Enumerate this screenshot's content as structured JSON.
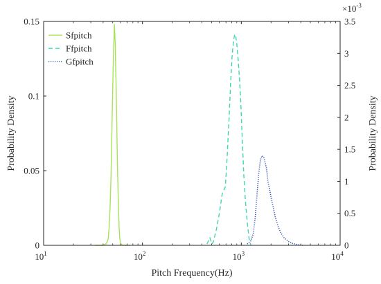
{
  "chart_data": {
    "type": "line",
    "xlabel": "Pitch Frequency(Hz)",
    "ylabel_left": "Probability Density",
    "ylabel_right": "Probability Density",
    "x_scale": "log",
    "xlim": [
      10,
      10000
    ],
    "x_ticks": [
      {
        "value": 10,
        "base": "10",
        "exp": "1"
      },
      {
        "value": 100,
        "base": "10",
        "exp": "2"
      },
      {
        "value": 1000,
        "base": "10",
        "exp": "3"
      },
      {
        "value": 10000,
        "base": "10",
        "exp": "4"
      }
    ],
    "ylim_left": [
      0,
      0.15
    ],
    "y_ticks_left": [
      {
        "value": 0,
        "label": "0"
      },
      {
        "value": 0.05,
        "label": "0.05"
      },
      {
        "value": 0.1,
        "label": "0.1"
      },
      {
        "value": 0.15,
        "label": "0.15"
      }
    ],
    "ylim_right": [
      0,
      3.5
    ],
    "y_ticks_right": [
      {
        "value": 0,
        "label": "0"
      },
      {
        "value": 0.5,
        "label": "0.5"
      },
      {
        "value": 1,
        "label": "1"
      },
      {
        "value": 1.5,
        "label": "1.5"
      },
      {
        "value": 2,
        "label": "2"
      },
      {
        "value": 2.5,
        "label": "2.5"
      },
      {
        "value": 3,
        "label": "3"
      },
      {
        "value": 3.5,
        "label": "3.5"
      }
    ],
    "right_multiplier": {
      "base": "×10",
      "exp": "-3"
    },
    "grid": false,
    "legend_position": "top-left",
    "series": [
      {
        "name": "Sfpitch",
        "axis": "left",
        "color": "#a6e35a",
        "style": "solid",
        "points": [
          [
            33,
            0
          ],
          [
            40,
            0
          ],
          [
            43,
            0.001
          ],
          [
            45,
            0.004
          ],
          [
            46,
            0.012
          ],
          [
            47,
            0.025
          ],
          [
            48,
            0.045
          ],
          [
            49,
            0.075
          ],
          [
            50,
            0.105
          ],
          [
            51,
            0.13
          ],
          [
            52,
            0.148
          ],
          [
            53,
            0.135
          ],
          [
            54,
            0.11
          ],
          [
            55,
            0.08
          ],
          [
            56,
            0.05
          ],
          [
            57,
            0.028
          ],
          [
            58,
            0.012
          ],
          [
            59,
            0.004
          ],
          [
            61,
            0.0005
          ],
          [
            65,
            0
          ],
          [
            75,
            0
          ]
        ]
      },
      {
        "name": "Ffpitch",
        "axis": "right",
        "color": "#3fd6b0",
        "style": "dashed",
        "points": [
          [
            450,
            0.02
          ],
          [
            480,
            0.12
          ],
          [
            505,
            0.02
          ],
          [
            520,
            0.05
          ],
          [
            560,
            0.25
          ],
          [
            600,
            0.5
          ],
          [
            640,
            0.8
          ],
          [
            670,
            0.87
          ],
          [
            690,
            0.92
          ],
          [
            720,
            1.4
          ],
          [
            750,
            1.95
          ],
          [
            780,
            2.55
          ],
          [
            810,
            3.0
          ],
          [
            840,
            3.23
          ],
          [
            860,
            3.3
          ],
          [
            880,
            3.26
          ],
          [
            900,
            3.15
          ],
          [
            930,
            2.9
          ],
          [
            960,
            2.6
          ],
          [
            990,
            2.2
          ],
          [
            1020,
            1.7
          ],
          [
            1060,
            1.1
          ],
          [
            1100,
            0.7
          ],
          [
            1150,
            0.35
          ],
          [
            1200,
            0.1
          ],
          [
            1250,
            0
          ]
        ]
      },
      {
        "name": "Gfpitch",
        "axis": "right",
        "color": "#3355bb",
        "style": "dotted",
        "points": [
          [
            1150,
            0.02
          ],
          [
            1250,
            0.07
          ],
          [
            1320,
            0.18
          ],
          [
            1380,
            0.42
          ],
          [
            1440,
            0.78
          ],
          [
            1500,
            1.12
          ],
          [
            1560,
            1.33
          ],
          [
            1620,
            1.4
          ],
          [
            1680,
            1.38
          ],
          [
            1740,
            1.3
          ],
          [
            1800,
            1.2
          ],
          [
            1860,
            1.0
          ],
          [
            1930,
            0.88
          ],
          [
            2000,
            0.75
          ],
          [
            2100,
            0.6
          ],
          [
            2200,
            0.45
          ],
          [
            2350,
            0.3
          ],
          [
            2500,
            0.2
          ],
          [
            2700,
            0.12
          ],
          [
            3000,
            0.06
          ],
          [
            3300,
            0.03
          ],
          [
            3700,
            0.01
          ],
          [
            4200,
            0
          ]
        ]
      }
    ]
  }
}
